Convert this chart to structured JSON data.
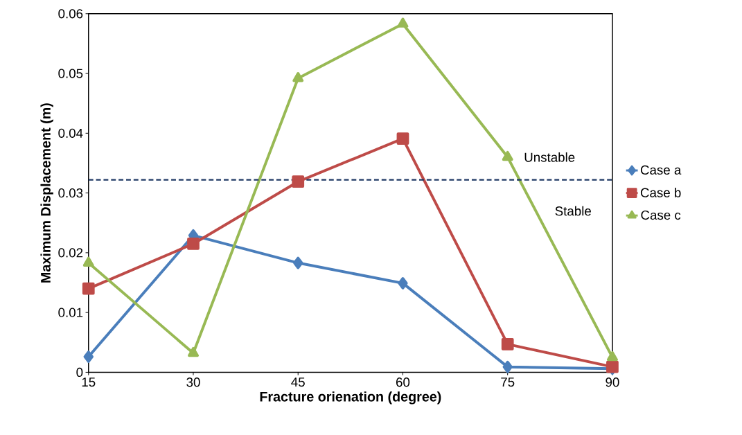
{
  "chart_data": {
    "type": "line",
    "xlabel": "Fracture orienation (degree)",
    "ylabel": "Maximum Displacement (m)",
    "x": [
      15,
      30,
      45,
      60,
      75,
      90
    ],
    "series": [
      {
        "name": "Case a",
        "color": "#4a7ebb",
        "marker": "diamond",
        "values": [
          0.0026,
          0.0229,
          0.0183,
          0.0149,
          0.0009,
          0.0006
        ]
      },
      {
        "name": "Case b",
        "color": "#be4b48",
        "marker": "square",
        "values": [
          0.014,
          0.0215,
          0.0319,
          0.0391,
          0.0047,
          0.0009
        ]
      },
      {
        "name": "Case c",
        "color": "#98b954",
        "marker": "triangle",
        "values": [
          0.0183,
          0.0032,
          0.0492,
          0.0583,
          0.036,
          0.0025
        ]
      }
    ],
    "xlim": [
      15,
      90
    ],
    "xticks": [
      15,
      30,
      45,
      60,
      75,
      90
    ],
    "ylim": [
      0,
      0.06
    ],
    "yticks": [
      0,
      0.01,
      0.02,
      0.03,
      0.04,
      0.05,
      0.06
    ],
    "ref_lines": [
      {
        "axis": "y",
        "value": 0.0322,
        "color": "#1f3864",
        "line_style": "dashed"
      }
    ],
    "annotations": [
      "Unstable",
      "Stable"
    ],
    "grid": false,
    "legend": "right"
  }
}
